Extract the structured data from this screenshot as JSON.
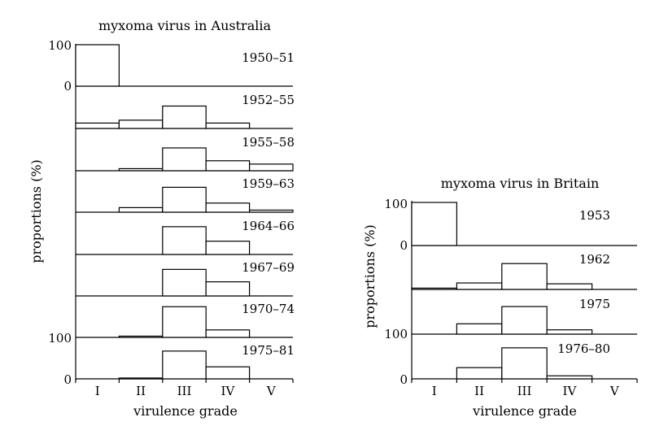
{
  "chart_data": [
    {
      "type": "bar",
      "title": "myxoma virus in Australia",
      "xlabel": "virulence grade",
      "ylabel": "proportions (%)",
      "categories": [
        "I",
        "II",
        "III",
        "IV",
        "V"
      ],
      "ylim": [
        0,
        100
      ],
      "y_ticks": [
        "100",
        "0"
      ],
      "series": [
        {
          "name": "1950–51",
          "values": [
            100,
            0,
            0,
            0,
            0
          ]
        },
        {
          "name": "1952–55",
          "values": [
            13,
            20,
            54,
            13,
            0
          ]
        },
        {
          "name": "1955–58",
          "values": [
            0,
            5,
            55,
            24,
            16
          ]
        },
        {
          "name": "1959–63",
          "values": [
            0,
            11,
            60,
            22,
            5
          ]
        },
        {
          "name": "1964–66",
          "values": [
            0,
            0,
            67,
            32,
            0
          ]
        },
        {
          "name": "1967–69",
          "values": [
            0,
            0,
            64,
            34,
            0
          ]
        },
        {
          "name": "1970–74",
          "values": [
            0,
            3,
            74,
            18,
            0
          ]
        },
        {
          "name": "1975–81",
          "values": [
            0,
            2,
            67,
            29,
            0
          ]
        }
      ]
    },
    {
      "type": "bar",
      "title": "myxoma virus in Britain",
      "xlabel": "virulence grade",
      "ylabel": "proportions (%)",
      "categories": [
        "I",
        "II",
        "III",
        "IV",
        "V"
      ],
      "ylim": [
        0,
        100
      ],
      "y_ticks": [
        "100",
        "0"
      ],
      "series": [
        {
          "name": "1953",
          "values": [
            100,
            0,
            0,
            0,
            0
          ]
        },
        {
          "name": "1962",
          "values": [
            3,
            15,
            60,
            13,
            0
          ]
        },
        {
          "name": "1975",
          "values": [
            0,
            24,
            64,
            10,
            0
          ]
        },
        {
          "name": "1976–80",
          "values": [
            0,
            26,
            72,
            7,
            0
          ]
        }
      ]
    }
  ]
}
